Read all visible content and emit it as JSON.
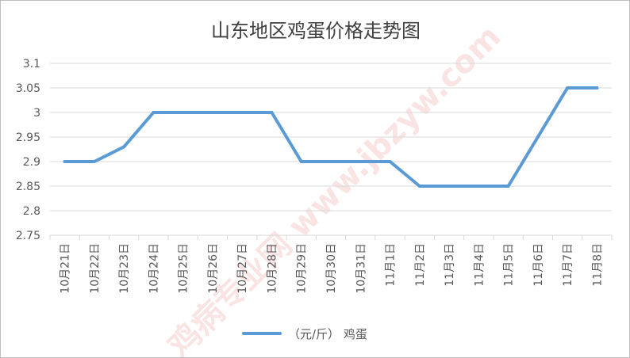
{
  "chart_data": {
    "type": "line",
    "title": "山东地区鸡蛋价格走势图",
    "categories": [
      "10月21日",
      "10月22日",
      "10月23日",
      "10月24日",
      "10月25日",
      "10月26日",
      "10月27日",
      "10月28日",
      "10月29日",
      "10月30日",
      "10月31日",
      "11月1日",
      "11月2日",
      "11月3日",
      "11月4日",
      "11月5日",
      "11月6日",
      "11月7日",
      "11月8日"
    ],
    "series": [
      {
        "name": "（元/斤） 鸡蛋",
        "values": [
          2.9,
          2.9,
          2.93,
          3.0,
          3.0,
          3.0,
          3.0,
          3.0,
          2.9,
          2.9,
          2.9,
          2.9,
          2.85,
          2.85,
          2.85,
          2.85,
          2.95,
          3.05,
          3.05
        ],
        "color": "#5b9bd5"
      }
    ],
    "ylim": [
      2.75,
      3.1
    ],
    "yticks": [
      "3.1",
      "3.05",
      "3",
      "2.95",
      "2.9",
      "2.85",
      "2.8",
      "2.75"
    ],
    "grid": true,
    "legend": "bottom"
  },
  "watermark": "鸡病专业网 www.jbzyw.com"
}
